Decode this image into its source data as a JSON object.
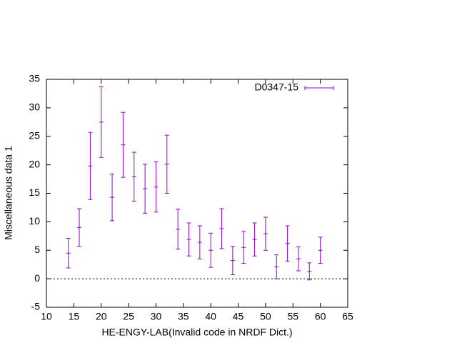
{
  "chart_data": {
    "type": "errorbar",
    "x_label": "HE-ENGY-LAB(Invalid code in NRDF Dict.)",
    "y_label": "Miscellaneous data 1",
    "x": [
      14,
      16,
      18,
      20,
      22,
      24,
      26,
      28,
      30,
      32,
      34,
      36,
      38,
      40,
      42,
      44,
      46,
      48,
      50,
      52,
      54,
      56,
      58,
      60
    ],
    "series": [
      {
        "name": "D0347-15",
        "color": "#9400d3",
        "values": [
          4.5,
          9.0,
          19.8,
          27.5,
          14.3,
          23.5,
          17.9,
          15.8,
          16.1,
          20.1,
          8.7,
          6.9,
          6.4,
          5.0,
          8.8,
          3.2,
          5.5,
          6.9,
          7.9,
          2.1,
          6.2,
          3.5,
          1.3,
          5.0
        ],
        "errors": [
          2.6,
          3.3,
          5.9,
          6.2,
          4.1,
          5.7,
          4.3,
          4.3,
          4.4,
          5.1,
          3.5,
          2.9,
          2.9,
          3.0,
          3.5,
          2.5,
          2.8,
          2.9,
          2.9,
          2.1,
          3.1,
          2.1,
          1.5,
          2.3
        ]
      }
    ],
    "xlim": [
      10,
      65
    ],
    "xticks": [
      10,
      15,
      20,
      25,
      30,
      35,
      40,
      45,
      50,
      55,
      60,
      65
    ],
    "ylim": [
      -5,
      35
    ],
    "yticks": [
      -5,
      0,
      5,
      10,
      15,
      20,
      25,
      30,
      35
    ],
    "zero_line": true,
    "legend": "top-right"
  }
}
